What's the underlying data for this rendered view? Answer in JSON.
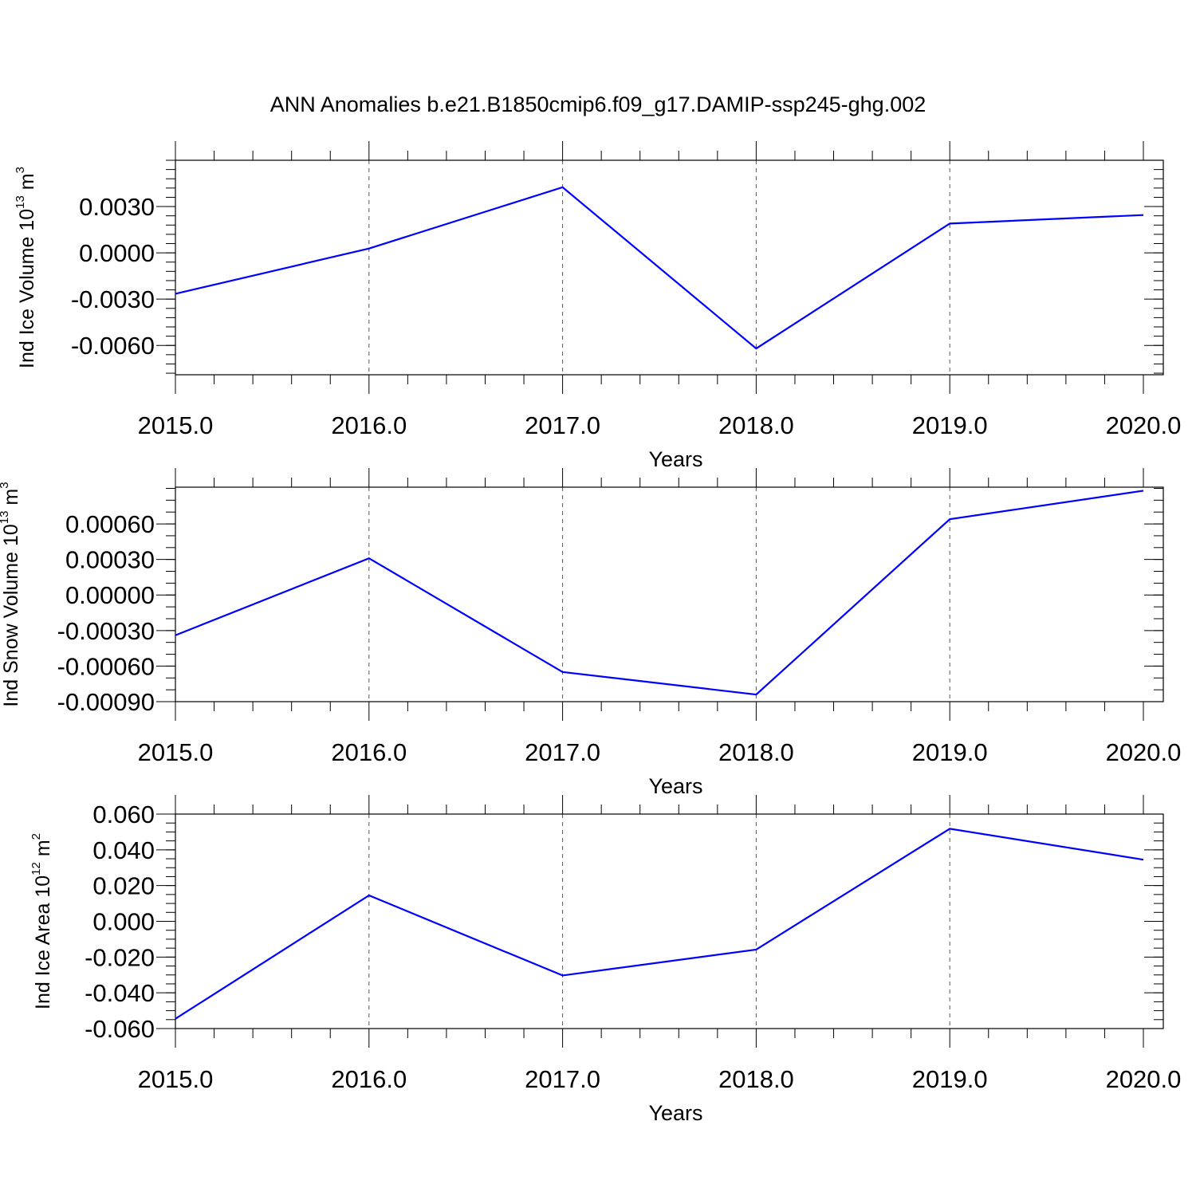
{
  "figure": {
    "title": "ANN Anomalies b.e21.B1850cmip6.f09_g17.DAMIP-ssp245-ghg.002"
  },
  "chart_data": [
    {
      "type": "line",
      "ylabel": {
        "text": "Ind Ice Volume 10",
        "sup": "13",
        "unit": " m",
        "unit_sup": "3"
      },
      "xlabel": "Years",
      "x": [
        2015,
        2016,
        2017,
        2018,
        2019,
        2020
      ],
      "series": [
        {
          "values": [
            -0.00265,
            0.00028,
            0.00425,
            -0.0062,
            0.0019,
            0.00245
          ]
        }
      ],
      "xlim": [
        2015,
        2020
      ],
      "ylim": [
        -0.0079,
        0.006
      ],
      "xticks": [
        2015,
        2016,
        2017,
        2018,
        2019,
        2020
      ],
      "xtick_labels": [
        "2015.0",
        "2016.0",
        "2017.0",
        "2018.0",
        "2019.0",
        "2020.0"
      ],
      "yticks": [
        0.003,
        0.0,
        -0.003,
        -0.006
      ],
      "ytick_labels": [
        "0.0030",
        "0.0000",
        "-0.0030",
        "-0.0060"
      ],
      "yminor_step": 0.0006,
      "line_color": "#0000ff",
      "grid": "x-dashed"
    },
    {
      "type": "line",
      "ylabel": {
        "text": "Ind Snow Volume 10",
        "sup": "13",
        "unit": " m",
        "unit_sup": "3"
      },
      "xlabel": "Years",
      "x": [
        2015,
        2016,
        2017,
        2018,
        2019,
        2020
      ],
      "series": [
        {
          "values": [
            -0.00034,
            0.00031,
            -0.00065,
            -0.00084,
            0.00064,
            0.00088
          ]
        }
      ],
      "xlim": [
        2015,
        2020
      ],
      "ylim": [
        -0.0009,
        0.00091
      ],
      "xticks": [
        2015,
        2016,
        2017,
        2018,
        2019,
        2020
      ],
      "xtick_labels": [
        "2015.0",
        "2016.0",
        "2017.0",
        "2018.0",
        "2019.0",
        "2020.0"
      ],
      "yticks": [
        0.0006,
        0.0003,
        0.0,
        -0.0003,
        -0.0006,
        -0.0009
      ],
      "ytick_labels": [
        "0.00060",
        "0.00030",
        "0.00000",
        "-0.00030",
        "-0.00060",
        "-0.00090"
      ],
      "yminor_step": 0.0001,
      "line_color": "#0000ff",
      "grid": "x-dashed"
    },
    {
      "type": "line",
      "ylabel": {
        "text": "Ind Ice Area 10",
        "sup": "12",
        "unit": " m",
        "unit_sup": "2"
      },
      "xlabel": "Years",
      "x": [
        2015,
        2016,
        2017,
        2018,
        2019,
        2020
      ],
      "series": [
        {
          "values": [
            -0.0545,
            0.0145,
            -0.0303,
            -0.0158,
            0.0518,
            0.0345
          ]
        }
      ],
      "xlim": [
        2015,
        2020
      ],
      "ylim": [
        -0.06,
        0.06
      ],
      "xticks": [
        2015,
        2016,
        2017,
        2018,
        2019,
        2020
      ],
      "xtick_labels": [
        "2015.0",
        "2016.0",
        "2017.0",
        "2018.0",
        "2019.0",
        "2020.0"
      ],
      "yticks": [
        0.06,
        0.04,
        0.02,
        0.0,
        -0.02,
        -0.04,
        -0.06
      ],
      "ytick_labels": [
        "0.060",
        "0.040",
        "0.020",
        "0.000",
        "-0.020",
        "-0.040",
        "-0.060"
      ],
      "yminor_step": 0.005,
      "line_color": "#0000ff",
      "grid": "x-dashed"
    }
  ]
}
